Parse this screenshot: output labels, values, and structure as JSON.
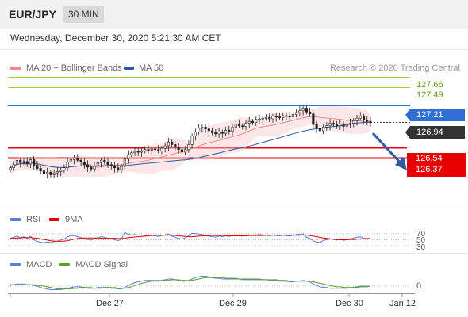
{
  "header": {
    "pair": "EUR/JPY",
    "timeframe": "30 MIN"
  },
  "datetime": "Wednesday, December 30, 2020 5:21:30 AM CET",
  "legend": {
    "ma20": "MA 20 + Bollinger Bands",
    "ma50": "MA 50",
    "research": "Research © 2020 Trading Central",
    "rsi": "RSI",
    "rsi_ma": "9MA",
    "macd": "MACD",
    "macd_signal": "MACD Signal"
  },
  "colors": {
    "ma20": "#f08a8a",
    "ma50": "#2c5aa0",
    "resistance": "#9acd32",
    "pivot": "#2f6fd6",
    "support": "#e60000",
    "last": "#333333",
    "rsi": "#5b7fd6",
    "rsi_ma": "#e60000",
    "macd": "#5b7fd6",
    "macd_signal": "#5aa02c"
  },
  "chart_data": {
    "type": "candlestick",
    "ylim": [
      125.6,
      128.0
    ],
    "levels": [
      {
        "label": "127.66",
        "value": 127.66,
        "kind": "resistance"
      },
      {
        "label": "127.49",
        "value": 127.49,
        "kind": "resistance"
      },
      {
        "label": "127.21",
        "value": 127.21,
        "kind": "pivot"
      },
      {
        "label": "126.94",
        "value": 126.94,
        "kind": "last"
      },
      {
        "label": "126.54",
        "value": 126.54,
        "kind": "support"
      },
      {
        "label": "126.37",
        "value": 126.37,
        "kind": "support"
      }
    ],
    "x_ticks": [
      "Dec 27",
      "Dec 29",
      "Dec 30",
      "Jan 12"
    ],
    "rsi_levels": [
      "70",
      "50",
      "30"
    ],
    "macd_levels": [
      "0"
    ],
    "forecast": "down",
    "close": [
      126.21,
      126.26,
      126.33,
      126.29,
      126.31,
      126.27,
      126.34,
      126.25,
      126.2,
      126.16,
      126.12,
      126.14,
      126.1,
      126.13,
      126.15,
      126.17,
      126.21,
      126.3,
      126.34,
      126.36,
      126.33,
      126.3,
      126.26,
      126.22,
      126.19,
      126.24,
      126.29,
      126.33,
      126.3,
      126.26,
      126.24,
      126.21,
      126.18,
      126.23,
      126.35,
      126.42,
      126.45,
      126.47,
      126.46,
      126.48,
      126.5,
      126.49,
      126.51,
      126.5,
      126.48,
      126.52,
      126.56,
      126.62,
      126.58,
      126.54,
      126.5,
      126.46,
      126.5,
      126.58,
      126.72,
      126.78,
      126.84,
      126.86,
      126.83,
      126.8,
      126.77,
      126.75,
      126.78,
      126.76,
      126.81,
      126.79,
      126.86,
      126.91,
      126.88,
      126.87,
      126.92,
      126.95,
      126.93,
      126.98,
      126.99,
      127.0,
      127.01,
      126.99,
      127.03,
      127.02,
      127.01,
      127.04,
      127.03,
      127.02,
      127.06,
      127.09,
      127.12,
      127.16,
      127.1,
      127.07,
      126.9,
      126.84,
      126.8,
      126.86,
      126.88,
      126.92,
      126.9,
      126.88,
      126.91,
      126.87,
      126.9,
      126.92,
      126.96,
      127.0,
      127.03,
      126.97,
      126.95,
      126.94
    ],
    "rsi": [
      55,
      58,
      62,
      57,
      60,
      54,
      61,
      50,
      45,
      42,
      40,
      43,
      41,
      44,
      46,
      49,
      52,
      60,
      63,
      64,
      60,
      57,
      54,
      51,
      49,
      53,
      57,
      60,
      58,
      55,
      53,
      50,
      47,
      52,
      74,
      68,
      66,
      67,
      65,
      66,
      64,
      63,
      65,
      63,
      61,
      64,
      66,
      69,
      62,
      58,
      55,
      52,
      57,
      63,
      71,
      70,
      69,
      67,
      64,
      62,
      60,
      59,
      62,
      60,
      63,
      61,
      64,
      66,
      63,
      62,
      65,
      66,
      64,
      66,
      67,
      66,
      65,
      63,
      66,
      64,
      63,
      65,
      64,
      62,
      65,
      67,
      68,
      69,
      58,
      55,
      46,
      43,
      41,
      48,
      50,
      53,
      51,
      49,
      52,
      48,
      51,
      53,
      56,
      58,
      60,
      55,
      53,
      52
    ],
    "rsi_ma": [
      54,
      55,
      56,
      56,
      57,
      57,
      57,
      56,
      55,
      53,
      51,
      49,
      47,
      46,
      45,
      45,
      46,
      47,
      50,
      52,
      54,
      55,
      56,
      56,
      56,
      56,
      56,
      55,
      55,
      55,
      55,
      55,
      54,
      54,
      55,
      57,
      58,
      59,
      60,
      61,
      62,
      63,
      64,
      65,
      65,
      65,
      65,
      65,
      65,
      64,
      63,
      62,
      61,
      60,
      60,
      61,
      62,
      63,
      63,
      64,
      64,
      64,
      64,
      64,
      64,
      63,
      63,
      63,
      63,
      63,
      63,
      64,
      64,
      64,
      64,
      64,
      65,
      65,
      65,
      65,
      65,
      65,
      65,
      65,
      65,
      65,
      65,
      66,
      65,
      64,
      62,
      60,
      58,
      56,
      55,
      53,
      52,
      51,
      50,
      50,
      50,
      51,
      51,
      52,
      53,
      53,
      54,
      54
    ],
    "macd": [
      0.02,
      0.02,
      0.03,
      0.03,
      0.03,
      0.02,
      0.02,
      0.01,
      0.0,
      -0.02,
      -0.03,
      -0.04,
      -0.05,
      -0.05,
      -0.05,
      -0.05,
      -0.04,
      -0.03,
      -0.02,
      -0.01,
      -0.01,
      -0.01,
      -0.02,
      -0.03,
      -0.03,
      -0.03,
      -0.02,
      -0.02,
      -0.02,
      -0.02,
      -0.03,
      -0.03,
      -0.04,
      -0.04,
      -0.02,
      0.01,
      0.03,
      0.05,
      0.06,
      0.07,
      0.08,
      0.08,
      0.08,
      0.08,
      0.08,
      0.08,
      0.09,
      0.1,
      0.1,
      0.09,
      0.08,
      0.07,
      0.07,
      0.08,
      0.1,
      0.12,
      0.13,
      0.14,
      0.14,
      0.13,
      0.12,
      0.11,
      0.11,
      0.1,
      0.1,
      0.1,
      0.1,
      0.1,
      0.1,
      0.09,
      0.09,
      0.09,
      0.09,
      0.09,
      0.09,
      0.09,
      0.09,
      0.08,
      0.08,
      0.08,
      0.07,
      0.07,
      0.07,
      0.06,
      0.06,
      0.07,
      0.07,
      0.08,
      0.07,
      0.06,
      0.03,
      0.01,
      -0.01,
      -0.02,
      -0.02,
      -0.03,
      -0.03,
      -0.03,
      -0.03,
      -0.03,
      -0.03,
      -0.02,
      -0.02,
      -0.01,
      0.0,
      0.0,
      0.0,
      0.0
    ],
    "macd_signal": [
      0.01,
      0.02,
      0.02,
      0.02,
      0.02,
      0.02,
      0.02,
      0.02,
      0.01,
      0.01,
      0.0,
      -0.01,
      -0.02,
      -0.03,
      -0.04,
      -0.04,
      -0.04,
      -0.04,
      -0.04,
      -0.03,
      -0.03,
      -0.02,
      -0.02,
      -0.02,
      -0.02,
      -0.03,
      -0.03,
      -0.03,
      -0.02,
      -0.02,
      -0.02,
      -0.02,
      -0.03,
      -0.03,
      -0.03,
      -0.02,
      -0.01,
      0.01,
      0.02,
      0.04,
      0.05,
      0.06,
      0.07,
      0.07,
      0.07,
      0.08,
      0.08,
      0.08,
      0.09,
      0.09,
      0.09,
      0.08,
      0.08,
      0.08,
      0.08,
      0.09,
      0.1,
      0.11,
      0.12,
      0.12,
      0.12,
      0.12,
      0.12,
      0.12,
      0.11,
      0.11,
      0.11,
      0.11,
      0.1,
      0.1,
      0.1,
      0.1,
      0.1,
      0.1,
      0.1,
      0.09,
      0.09,
      0.09,
      0.09,
      0.09,
      0.08,
      0.08,
      0.08,
      0.07,
      0.07,
      0.07,
      0.07,
      0.07,
      0.07,
      0.07,
      0.06,
      0.05,
      0.04,
      0.03,
      0.02,
      0.01,
      0.0,
      -0.01,
      -0.01,
      -0.02,
      -0.02,
      -0.02,
      -0.02,
      -0.02,
      -0.01,
      -0.01,
      -0.01,
      0.0
    ]
  }
}
